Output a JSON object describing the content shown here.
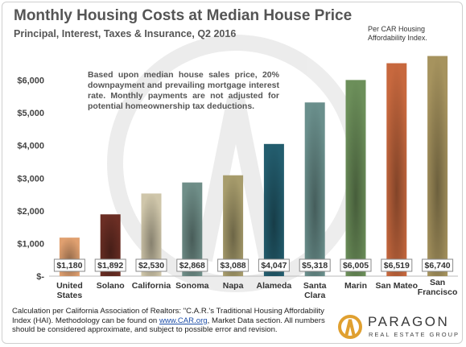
{
  "title": "Monthly Housing Costs at Median House Price",
  "subtitle": "Principal, Interest, Taxes & Insurance, Q2 2016",
  "source_note": "Per CAR Housing Affordability Index.",
  "annotation": "Based upon median house sales price, 20% downpayment and prevailing mortgage interest rate. Monthly payments are not adjusted for potential homeownership tax deductions.",
  "footer": {
    "line_a": "Calculation per California Association of Realtors: \"C.A.R.'s Traditional Housing Affordability Index (HAI). Methodology can be found on ",
    "link": "www.CAR.org",
    "line_b": ", Market Data section. All numbers should be considered approximate, and subject to possible error and revision."
  },
  "logo": {
    "name": "PARAGON",
    "tagline": "REAL ESTATE GROUP",
    "icon": "paragon-logo-icon"
  },
  "chart_data": {
    "type": "bar",
    "categories": [
      [
        "United",
        "States"
      ],
      [
        "Solano"
      ],
      [
        "California"
      ],
      [
        "Sonoma"
      ],
      [
        "Napa"
      ],
      [
        "Alameda"
      ],
      [
        "Santa",
        "Clara"
      ],
      [
        "Marin"
      ],
      [
        "San Mateo"
      ],
      [
        "San",
        "Francisco"
      ]
    ],
    "values": [
      1180,
      1892,
      2530,
      2868,
      3088,
      4047,
      5318,
      6005,
      6519,
      6740
    ],
    "data_labels": [
      "$1,180",
      "$1,892",
      "$2,530",
      "$2,868",
      "$3,088",
      "$4,047",
      "$5,318",
      "$6,005",
      "$6,519",
      "$6,740"
    ],
    "y_ticks": [
      {
        "value": 0,
        "label": "$-"
      },
      {
        "value": 1000,
        "label": "$1,000"
      },
      {
        "value": 2000,
        "label": "$2,000"
      },
      {
        "value": 3000,
        "label": "$3,000"
      },
      {
        "value": 4000,
        "label": "$4,000"
      },
      {
        "value": 5000,
        "label": "$5,000"
      },
      {
        "value": 6000,
        "label": "$6,000"
      }
    ],
    "ylim": [
      0,
      7000
    ],
    "grid": false,
    "legend": "none",
    "colors": [
      "#e0a070",
      "#6b2e24",
      "#cfc6aa",
      "#6f8e88",
      "#a79c6c",
      "#235d6e",
      "#6a8f8c",
      "#6c8f5a",
      "#c7683e",
      "#a6935e"
    ]
  }
}
